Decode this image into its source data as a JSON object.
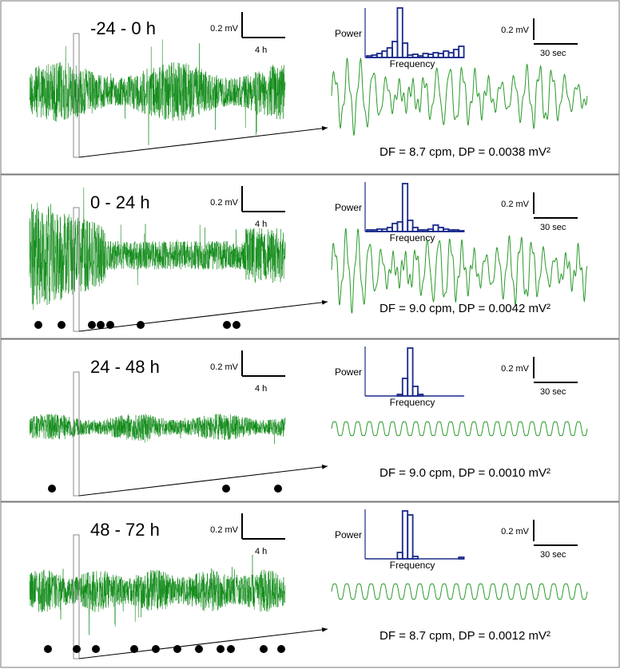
{
  "panels": [
    {
      "label": "-24 - 0 h",
      "trace_scale": {
        "amplitude": "0.2 mV",
        "time": "4 h"
      },
      "spectrum": {
        "y_label": "Power",
        "x_label": "Frequency"
      },
      "zoom_scale": {
        "amplitude": "0.2 mV",
        "time": "30 sec"
      },
      "summary": "DF = 8.7 cpm, DP = 0.0038 mV²"
    },
    {
      "label": "0 - 24 h",
      "trace_scale": {
        "amplitude": "0.2 mV",
        "time": "4 h"
      },
      "spectrum": {
        "y_label": "Power",
        "x_label": "Frequency"
      },
      "zoom_scale": {
        "amplitude": "0.2 mV",
        "time": "30 sec"
      },
      "summary": "DF = 9.0 cpm, DP = 0.0042 mV²"
    },
    {
      "label": "24 - 48 h",
      "trace_scale": {
        "amplitude": "0.2 mV",
        "time": "4 h"
      },
      "spectrum": {
        "y_label": "Power",
        "x_label": "Frequency"
      },
      "zoom_scale": {
        "amplitude": "0.2 mV",
        "time": "30 sec"
      },
      "summary": "DF = 9.0 cpm, DP = 0.0010 mV²"
    },
    {
      "label": "48 - 72 h",
      "trace_scale": {
        "amplitude": "0.2 mV",
        "time": "4 h"
      },
      "spectrum": {
        "y_label": "Power",
        "x_label": "Frequency"
      },
      "zoom_scale": {
        "amplitude": "0.2 mV",
        "time": "30 sec"
      },
      "summary": "DF = 8.7 cpm, DP = 0.0012 mV²"
    }
  ]
}
